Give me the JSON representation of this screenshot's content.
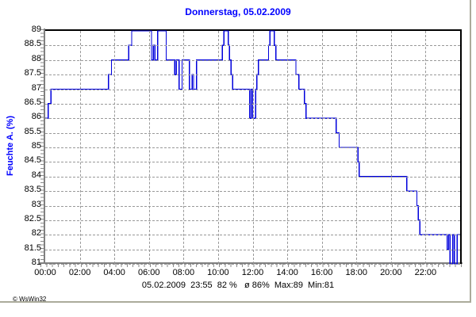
{
  "header": {
    "title": "Donnerstag, 05.02.2009",
    "title_color": "#0000ff"
  },
  "status": {
    "text": "05.02.2009  23:55  82 %   ø 86%  Max:89  Min:81"
  },
  "footer": {
    "copyright": "© WsWin32"
  },
  "colors": {
    "line": "#0000dc",
    "title": "#0000ff",
    "axis_label": "#0000ff",
    "grid": "#999999",
    "axis": "#808080",
    "bevel": "#abab9b"
  },
  "chart_data": {
    "type": "line",
    "title": "Donnerstag, 05.02.2009",
    "ylabel": "Feuchte A. (%)",
    "xlabel": "",
    "x_unit": "minutes_of_day",
    "xlim": [
      0,
      1440
    ],
    "ylim": [
      81,
      89
    ],
    "y_step": 0.5,
    "grid": true,
    "step_mode": "after",
    "stats": {
      "date": "05.02.2009",
      "last_time": "23:55",
      "last_value": "82 %",
      "average": "ø 86%",
      "max": "Max:89",
      "min": "Min:81"
    },
    "y_ticks": [
      {
        "v": 89,
        "label": "89"
      },
      {
        "v": 88.5,
        "label": "88.5"
      },
      {
        "v": 88,
        "label": "88"
      },
      {
        "v": 87.5,
        "label": "87.5"
      },
      {
        "v": 87,
        "label": "87"
      },
      {
        "v": 86.5,
        "label": "86.5"
      },
      {
        "v": 86,
        "label": "86"
      },
      {
        "v": 85.5,
        "label": "85.5"
      },
      {
        "v": 85,
        "label": "85"
      },
      {
        "v": 84.5,
        "label": "84.5"
      },
      {
        "v": 84,
        "label": "84"
      },
      {
        "v": 83.5,
        "label": "83.5"
      },
      {
        "v": 83,
        "label": "83"
      },
      {
        "v": 82.5,
        "label": "82.5"
      },
      {
        "v": 82,
        "label": "82"
      },
      {
        "v": 81.5,
        "label": "81.5"
      },
      {
        "v": 81,
        "label": "81"
      }
    ],
    "x_ticks": [
      {
        "m": 0,
        "label": "00:00"
      },
      {
        "m": 120,
        "label": "02:00"
      },
      {
        "m": 240,
        "label": "04:00"
      },
      {
        "m": 360,
        "label": "06:00"
      },
      {
        "m": 480,
        "label": "08:00"
      },
      {
        "m": 600,
        "label": "10:00"
      },
      {
        "m": 720,
        "label": "12:00"
      },
      {
        "m": 840,
        "label": "14:00"
      },
      {
        "m": 960,
        "label": "16:00"
      },
      {
        "m": 1080,
        "label": "18:00"
      },
      {
        "m": 1200,
        "label": "20:00"
      },
      {
        "m": 1320,
        "label": "22:00"
      }
    ],
    "points": [
      [
        0,
        86
      ],
      [
        10,
        86.5
      ],
      [
        20,
        87
      ],
      [
        220,
        87.5
      ],
      [
        230,
        88
      ],
      [
        290,
        88.5
      ],
      [
        300,
        89
      ],
      [
        369,
        88
      ],
      [
        375,
        88.5
      ],
      [
        381,
        88
      ],
      [
        390,
        89
      ],
      [
        420,
        88
      ],
      [
        450,
        87.5
      ],
      [
        455,
        88
      ],
      [
        465,
        87
      ],
      [
        475,
        88
      ],
      [
        500,
        87
      ],
      [
        510,
        87.5
      ],
      [
        515,
        87
      ],
      [
        525,
        88
      ],
      [
        615,
        88.5
      ],
      [
        620,
        89
      ],
      [
        635,
        88.5
      ],
      [
        640,
        88
      ],
      [
        645,
        87.5
      ],
      [
        650,
        87
      ],
      [
        710,
        86
      ],
      [
        715,
        87
      ],
      [
        720,
        86
      ],
      [
        730,
        87
      ],
      [
        735,
        87.5
      ],
      [
        740,
        88
      ],
      [
        775,
        88.5
      ],
      [
        780,
        89
      ],
      [
        795,
        88.5
      ],
      [
        800,
        88
      ],
      [
        870,
        87.5
      ],
      [
        880,
        87
      ],
      [
        900,
        86.5
      ],
      [
        905,
        86
      ],
      [
        1010,
        85.5
      ],
      [
        1020,
        85
      ],
      [
        1085,
        84.5
      ],
      [
        1090,
        84
      ],
      [
        1255,
        83.5
      ],
      [
        1290,
        83
      ],
      [
        1295,
        82.5
      ],
      [
        1300,
        82
      ],
      [
        1395,
        81.5
      ],
      [
        1400,
        82
      ],
      [
        1405,
        81
      ],
      [
        1415,
        82
      ],
      [
        1420,
        81
      ],
      [
        1430,
        82
      ],
      [
        1435,
        82
      ]
    ]
  }
}
